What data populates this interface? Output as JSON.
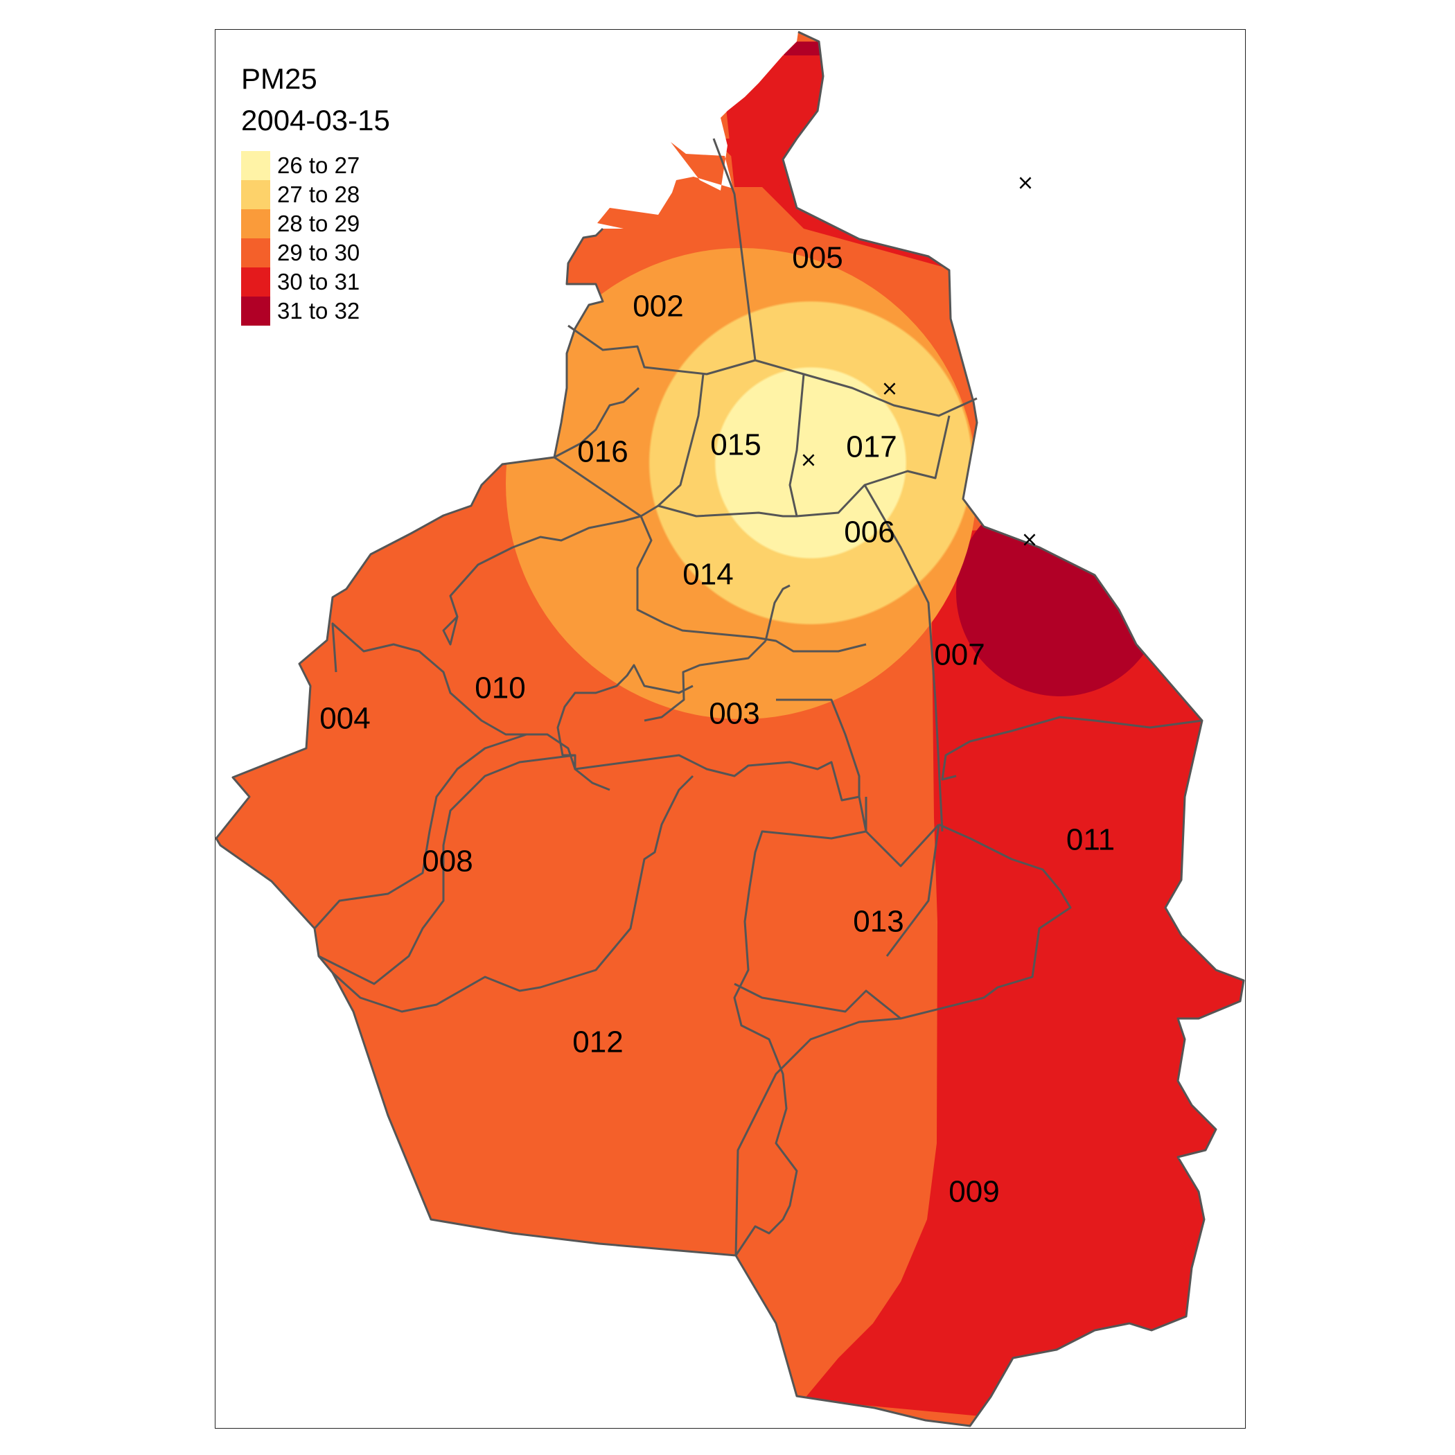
{
  "map": {
    "variable": "PM25",
    "date": "2004-03-15",
    "legend": [
      {
        "label": "26 to 27",
        "color": "#FFF3A6"
      },
      {
        "label": "27 to 28",
        "color": "#FDD26A"
      },
      {
        "label": "28 to 29",
        "color": "#FA9B3A"
      },
      {
        "label": "29 to 30",
        "color": "#F4602A"
      },
      {
        "label": "30 to 31",
        "color": "#E41A1C"
      },
      {
        "label": "31 to 32",
        "color": "#B10026"
      }
    ],
    "districts": [
      {
        "id": "002",
        "label": "002"
      },
      {
        "id": "003",
        "label": "003"
      },
      {
        "id": "004",
        "label": "004"
      },
      {
        "id": "005",
        "label": "005"
      },
      {
        "id": "006",
        "label": "006"
      },
      {
        "id": "007",
        "label": "007"
      },
      {
        "id": "008",
        "label": "008"
      },
      {
        "id": "009",
        "label": "009"
      },
      {
        "id": "010",
        "label": "010"
      },
      {
        "id": "011",
        "label": "011"
      },
      {
        "id": "012",
        "label": "012"
      },
      {
        "id": "013",
        "label": "013"
      },
      {
        "id": "014",
        "label": "014"
      },
      {
        "id": "015",
        "label": "015"
      },
      {
        "id": "016",
        "label": "016"
      },
      {
        "id": "017",
        "label": "017"
      }
    ],
    "station_symbol": "×"
  }
}
